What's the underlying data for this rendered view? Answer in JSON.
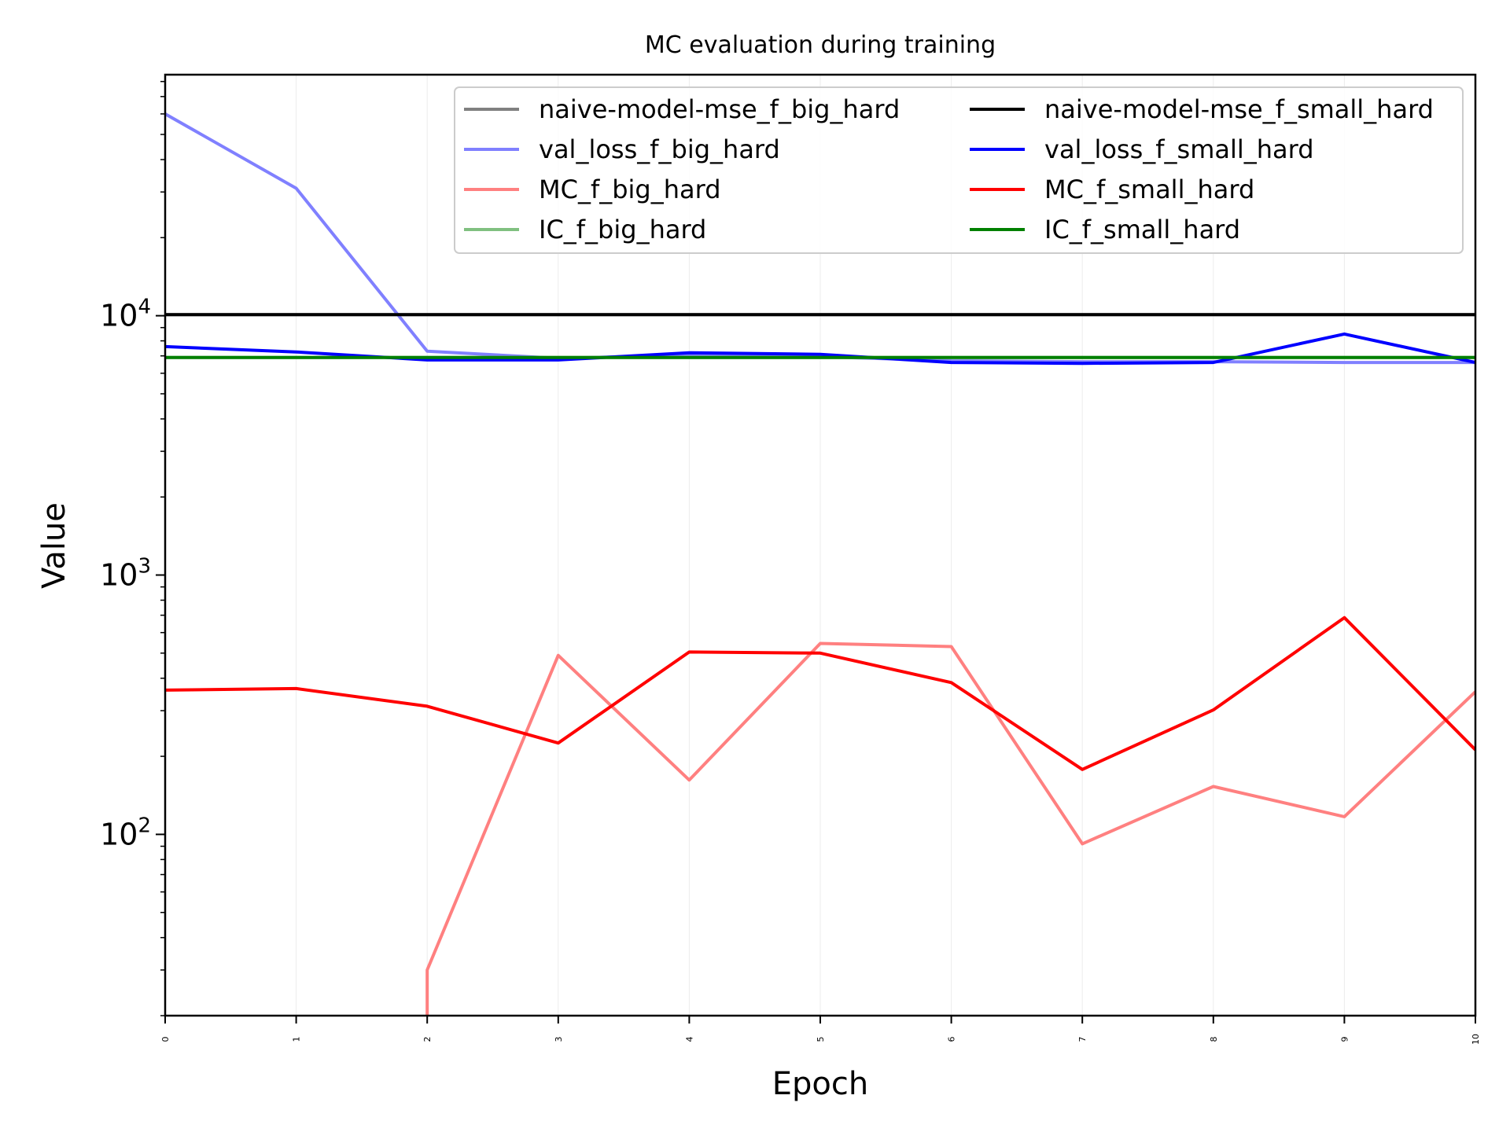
{
  "chart_data": {
    "type": "line",
    "title": "MC evaluation during training",
    "xlabel": "Epoch",
    "ylabel": "Value",
    "yscale": "log",
    "ylim": [
      20,
      85000
    ],
    "xlim": [
      0,
      10
    ],
    "x": [
      0,
      1,
      2,
      3,
      4,
      5,
      6,
      7,
      8,
      9,
      10
    ],
    "xticks": [
      "0",
      "1",
      "2",
      "3",
      "4",
      "5",
      "6",
      "7",
      "8",
      "9",
      "10"
    ],
    "yticks": [
      {
        "value": 100,
        "base": "10",
        "exp": "2"
      },
      {
        "value": 1000,
        "base": "10",
        "exp": "3"
      },
      {
        "value": 10000,
        "base": "10",
        "exp": "4"
      }
    ],
    "grid": "vertical",
    "legend_position": "top-right",
    "legend_columns": 2,
    "series": [
      {
        "name": "naive-model-mse_f_big_hard",
        "color": "#808080",
        "opacity": 1.0,
        "values": [
          10100,
          10100,
          10100,
          10100,
          10100,
          10100,
          10100,
          10100,
          10100,
          10100,
          10100
        ]
      },
      {
        "name": "val_loss_f_big_hard",
        "color": "#8080ff",
        "opacity": 1.0,
        "values": [
          60000,
          31000,
          7300,
          6850,
          7050,
          6950,
          6700,
          6650,
          6650,
          6600,
          6600
        ]
      },
      {
        "name": "MC_f_big_hard",
        "color": "#ff8080",
        "opacity": 1.0,
        "values": [
          null,
          null,
          30,
          490,
          162,
          545,
          530,
          92,
          153,
          117,
          355
        ],
        "drop_start": {
          "x": 2,
          "y": 20
        }
      },
      {
        "name": "IC_f_big_hard",
        "color": "#80c080",
        "opacity": 1.0,
        "values": [
          6900,
          6900,
          6900,
          6900,
          6900,
          6900,
          6900,
          6900,
          6900,
          6900,
          6900
        ]
      },
      {
        "name": "naive-model-mse_f_small_hard",
        "color": "#000000",
        "opacity": 1.0,
        "values": [
          10100,
          10100,
          10100,
          10100,
          10100,
          10100,
          10100,
          10100,
          10100,
          10100,
          10100
        ]
      },
      {
        "name": "val_loss_f_small_hard",
        "color": "#0000ff",
        "opacity": 1.0,
        "values": [
          7600,
          7250,
          6750,
          6750,
          7200,
          7100,
          6600,
          6550,
          6600,
          8500,
          6600
        ]
      },
      {
        "name": "MC_f_small_hard",
        "color": "#ff0000",
        "opacity": 1.0,
        "values": [
          360,
          365,
          312,
          225,
          505,
          500,
          385,
          178,
          302,
          685,
          212
        ]
      },
      {
        "name": "IC_f_small_hard",
        "color": "#008000",
        "opacity": 1.0,
        "values": [
          6900,
          6900,
          6900,
          6900,
          6900,
          6900,
          6900,
          6900,
          6900,
          6900,
          6900
        ]
      }
    ],
    "legend_order": [
      "naive-model-mse_f_big_hard",
      "val_loss_f_big_hard",
      "MC_f_big_hard",
      "IC_f_big_hard",
      "naive-model-mse_f_small_hard",
      "val_loss_f_small_hard",
      "MC_f_small_hard",
      "IC_f_small_hard"
    ]
  }
}
